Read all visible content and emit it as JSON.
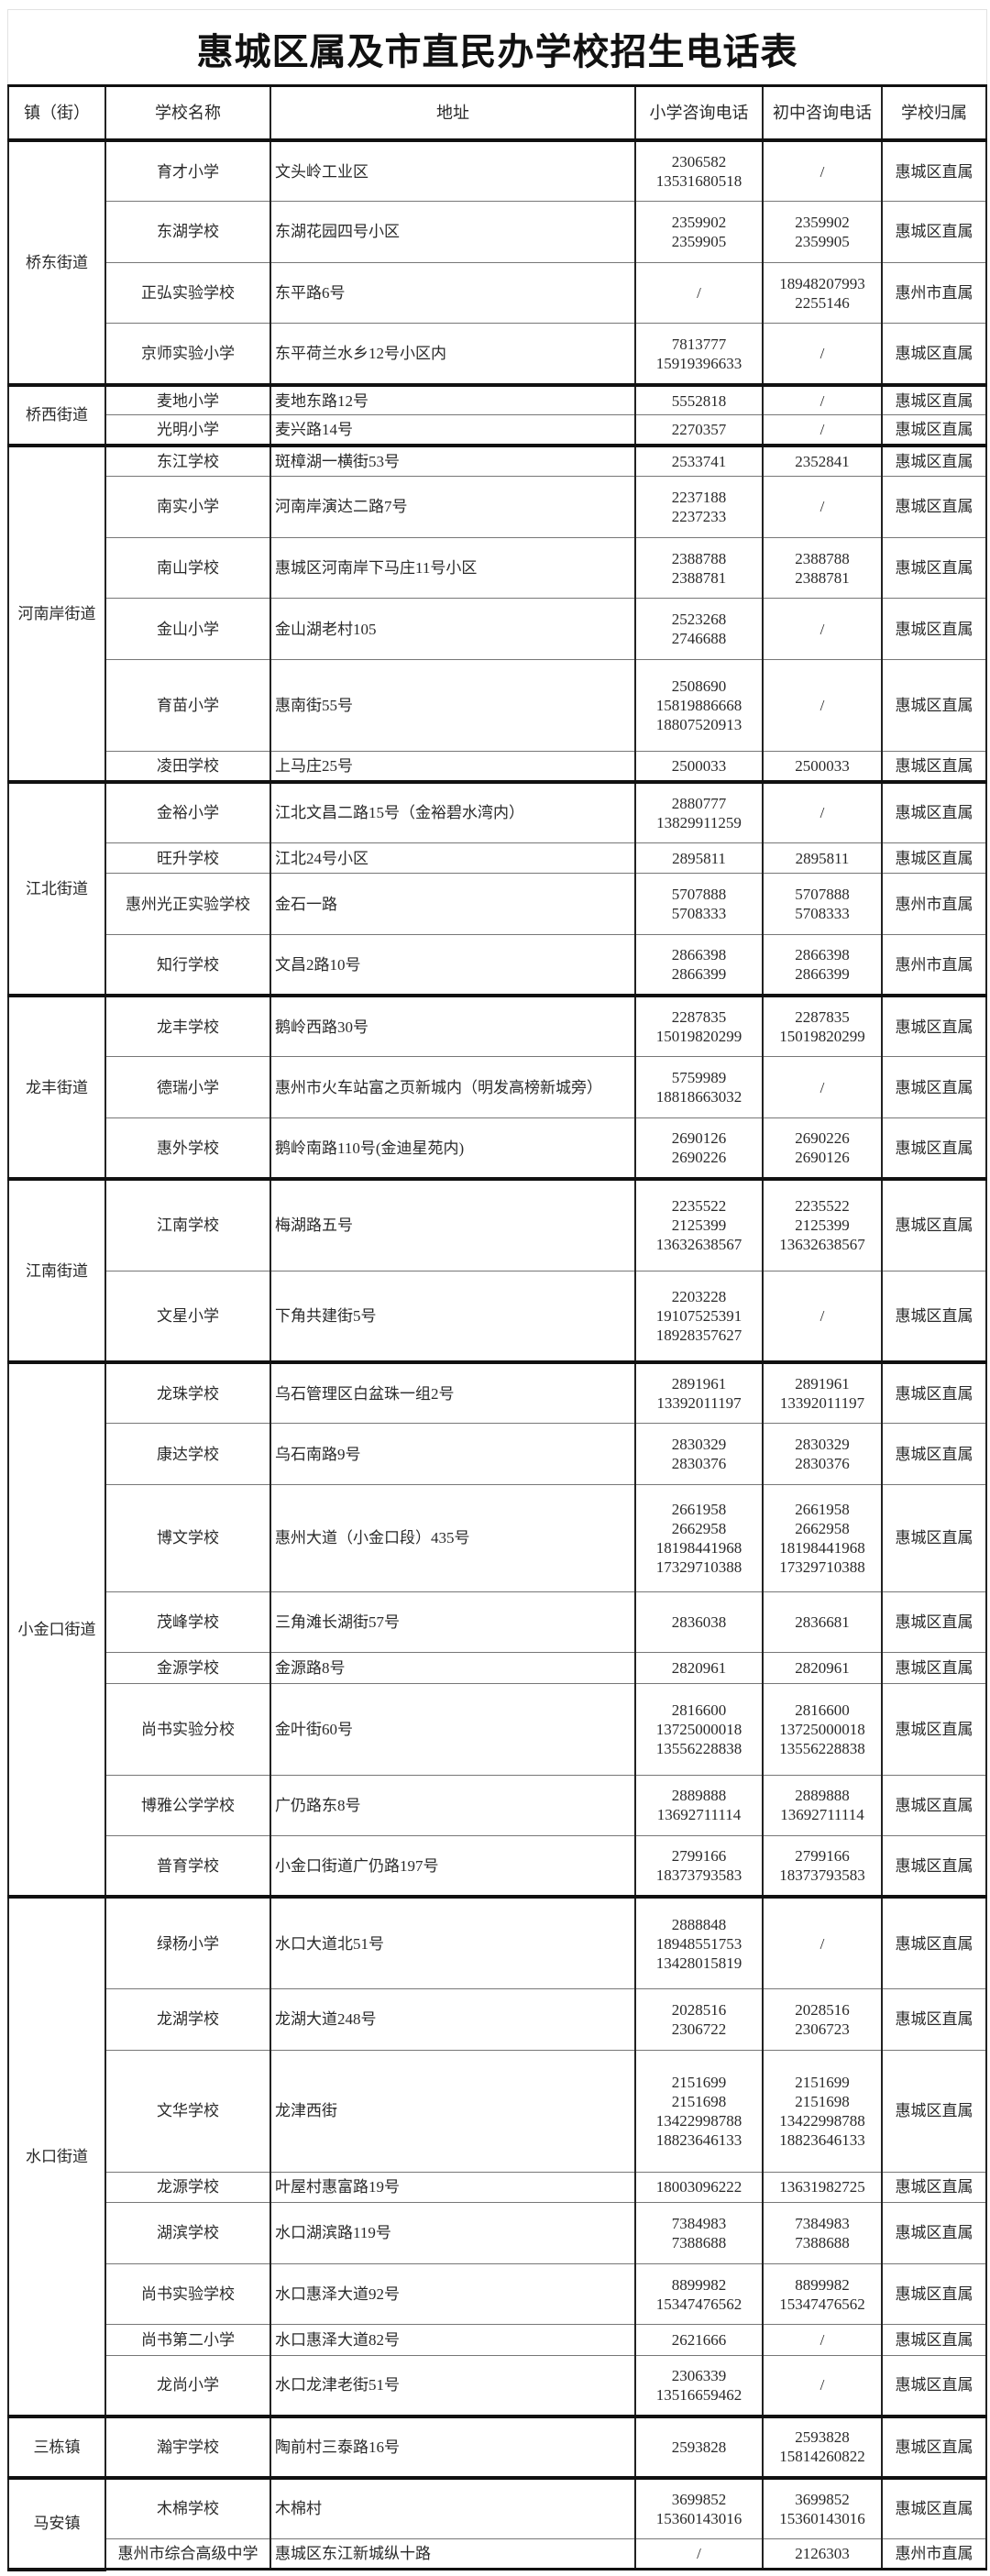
{
  "title": "惠城区属及市直民办学校招生电话表",
  "headers": [
    "镇（街）",
    "学校名称",
    "地址",
    "小学咨询电话",
    "初中咨询电话",
    "学校归属"
  ],
  "groups": [
    {
      "town": "桥东街道",
      "schools": [
        {
          "name": "育才小学",
          "address": "文头岭工业区",
          "primary_phone": [
            "2306582",
            "13531680518"
          ],
          "middle_phone": [
            "/"
          ],
          "affiliation": "惠城区直属"
        },
        {
          "name": "东湖学校",
          "address": "东湖花园四号小区",
          "primary_phone": [
            "2359902",
            "2359905"
          ],
          "middle_phone": [
            "2359902",
            "2359905"
          ],
          "affiliation": "惠城区直属"
        },
        {
          "name": "正弘实验学校",
          "address": "东平路6号",
          "primary_phone": [
            "/"
          ],
          "middle_phone": [
            "18948207993",
            "2255146"
          ],
          "affiliation": "惠州市直属"
        },
        {
          "name": "京师实验小学",
          "address": "东平荷兰水乡12号小区内",
          "primary_phone": [
            "7813777",
            "15919396633"
          ],
          "middle_phone": [
            "/"
          ],
          "affiliation": "惠城区直属"
        }
      ]
    },
    {
      "town": "桥西街道",
      "schools": [
        {
          "name": "麦地小学",
          "address": "麦地东路12号",
          "primary_phone": [
            "5552818"
          ],
          "middle_phone": [
            "/"
          ],
          "affiliation": "惠城区直属"
        },
        {
          "name": "光明小学",
          "address": "麦兴路14号",
          "primary_phone": [
            "2270357"
          ],
          "middle_phone": [
            "/"
          ],
          "affiliation": "惠城区直属"
        }
      ]
    },
    {
      "town": "河南岸街道",
      "schools": [
        {
          "name": "东江学校",
          "address": "斑樟湖一横街53号",
          "primary_phone": [
            "2533741"
          ],
          "middle_phone": [
            "2352841"
          ],
          "affiliation": "惠城区直属"
        },
        {
          "name": "南实小学",
          "address": "河南岸演达二路7号",
          "primary_phone": [
            "2237188",
            "2237233"
          ],
          "middle_phone": [
            "/"
          ],
          "affiliation": "惠城区直属"
        },
        {
          "name": "南山学校",
          "address": "惠城区河南岸下马庄11号小区",
          "primary_phone": [
            "2388788",
            "2388781"
          ],
          "middle_phone": [
            "2388788",
            "2388781"
          ],
          "affiliation": "惠城区直属"
        },
        {
          "name": "金山小学",
          "address": "金山湖老村105",
          "primary_phone": [
            "2523268",
            "2746688"
          ],
          "middle_phone": [
            "/"
          ],
          "affiliation": "惠城区直属"
        },
        {
          "name": "育苗小学",
          "address": "惠南街55号",
          "primary_phone": [
            "2508690",
            "15819886668",
            "18807520913"
          ],
          "middle_phone": [
            "/"
          ],
          "affiliation": "惠城区直属"
        },
        {
          "name": "凌田学校",
          "address": "上马庄25号",
          "primary_phone": [
            "2500033"
          ],
          "middle_phone": [
            "2500033"
          ],
          "affiliation": "惠城区直属"
        }
      ]
    },
    {
      "town": "江北街道",
      "schools": [
        {
          "name": "金裕小学",
          "address": "江北文昌二路15号（金裕碧水湾内）",
          "primary_phone": [
            "2880777",
            "13829911259"
          ],
          "middle_phone": [
            "/"
          ],
          "affiliation": "惠城区直属"
        },
        {
          "name": "旺升学校",
          "address": "江北24号小区",
          "primary_phone": [
            "2895811"
          ],
          "middle_phone": [
            "2895811"
          ],
          "affiliation": "惠城区直属"
        },
        {
          "name": "惠州光正实验学校",
          "address": "金石一路",
          "primary_phone": [
            "5707888",
            "5708333"
          ],
          "middle_phone": [
            "5707888",
            "5708333"
          ],
          "affiliation": "惠州市直属"
        },
        {
          "name": "知行学校",
          "address": "文昌2路10号",
          "primary_phone": [
            "2866398",
            "2866399"
          ],
          "middle_phone": [
            "2866398",
            "2866399"
          ],
          "affiliation": "惠州市直属"
        }
      ]
    },
    {
      "town": "龙丰街道",
      "schools": [
        {
          "name": "龙丰学校",
          "address": "鹅岭西路30号",
          "primary_phone": [
            "2287835",
            "15019820299"
          ],
          "middle_phone": [
            "2287835",
            "15019820299"
          ],
          "affiliation": "惠城区直属"
        },
        {
          "name": "德瑞小学",
          "address": "惠州市火车站富之页新城内（明发高榜新城旁）",
          "primary_phone": [
            "5759989",
            "18818663032"
          ],
          "middle_phone": [
            "/"
          ],
          "affiliation": "惠城区直属"
        },
        {
          "name": "惠外学校",
          "address": "鹅岭南路110号(金迪星苑内)",
          "primary_phone": [
            "2690126",
            "2690226"
          ],
          "middle_phone": [
            "2690226",
            "2690126"
          ],
          "affiliation": "惠城区直属"
        }
      ]
    },
    {
      "town": "江南街道",
      "schools": [
        {
          "name": "江南学校",
          "address": "梅湖路五号",
          "primary_phone": [
            "2235522",
            "2125399",
            "13632638567"
          ],
          "middle_phone": [
            "2235522",
            "2125399",
            "13632638567"
          ],
          "affiliation": "惠城区直属"
        },
        {
          "name": "文星小学",
          "address": "下角共建街5号",
          "primary_phone": [
            "2203228",
            "19107525391",
            "18928357627"
          ],
          "middle_phone": [
            "/"
          ],
          "affiliation": "惠城区直属"
        }
      ]
    },
    {
      "town": "小金口街道",
      "schools": [
        {
          "name": "龙珠学校",
          "address": "乌石管理区白盆珠一组2号",
          "primary_phone": [
            "2891961",
            "13392011197"
          ],
          "middle_phone": [
            "2891961",
            "13392011197"
          ],
          "affiliation": "惠城区直属"
        },
        {
          "name": "康达学校",
          "address": "乌石南路9号",
          "primary_phone": [
            "2830329",
            "2830376"
          ],
          "middle_phone": [
            "2830329",
            "2830376"
          ],
          "affiliation": "惠城区直属"
        },
        {
          "name": "博文学校",
          "address": "惠州大道（小金口段）435号",
          "primary_phone": [
            "2661958",
            "2662958",
            "18198441968",
            "17329710388"
          ],
          "middle_phone": [
            "2661958",
            "2662958",
            "18198441968",
            "17329710388"
          ],
          "affiliation": "惠城区直属"
        },
        {
          "name": "茂峰学校",
          "address": "三角滩长湖街57号",
          "primary_phone": [
            "2836038"
          ],
          "middle_phone": [
            "2836681"
          ],
          "affiliation": "惠城区直属"
        },
        {
          "name": "金源学校",
          "address": "金源路8号",
          "primary_phone": [
            "2820961"
          ],
          "middle_phone": [
            "2820961"
          ],
          "affiliation": "惠城区直属"
        },
        {
          "name": "尚书实验分校",
          "address": "金叶街60号",
          "primary_phone": [
            "2816600",
            "13725000018",
            "13556228838"
          ],
          "middle_phone": [
            "2816600",
            "13725000018",
            "13556228838"
          ],
          "affiliation": "惠城区直属"
        },
        {
          "name": "博雅公学学校",
          "address": "广仍路东8号",
          "primary_phone": [
            "2889888",
            "13692711114"
          ],
          "middle_phone": [
            "2889888",
            "13692711114"
          ],
          "affiliation": "惠城区直属"
        },
        {
          "name": "普育学校",
          "address": "小金口街道广仍路197号",
          "primary_phone": [
            "2799166",
            "18373793583"
          ],
          "middle_phone": [
            "2799166",
            "18373793583"
          ],
          "affiliation": "惠城区直属"
        }
      ]
    },
    {
      "town": "水口街道",
      "schools": [
        {
          "name": "绿杨小学",
          "address": "水口大道北51号",
          "primary_phone": [
            "2888848",
            "18948551753",
            "13428015819"
          ],
          "middle_phone": [
            "/"
          ],
          "affiliation": "惠城区直属"
        },
        {
          "name": "龙湖学校",
          "address": "龙湖大道248号",
          "primary_phone": [
            "2028516",
            "2306722"
          ],
          "middle_phone": [
            "2028516",
            "2306723"
          ],
          "affiliation": "惠城区直属"
        },
        {
          "name": "文华学校",
          "address": "龙津西街",
          "primary_phone": [
            "2151699",
            "2151698",
            "13422998788",
            "18823646133"
          ],
          "middle_phone": [
            "2151699",
            "2151698",
            "13422998788",
            "18823646133"
          ],
          "affiliation": "惠城区直属"
        },
        {
          "name": "龙源学校",
          "address": "叶屋村惠富路19号",
          "primary_phone": [
            "18003096222"
          ],
          "middle_phone": [
            "13631982725"
          ],
          "affiliation": "惠城区直属"
        },
        {
          "name": "湖滨学校",
          "address": "水口湖滨路119号",
          "primary_phone": [
            "7384983",
            "7388688"
          ],
          "middle_phone": [
            "7384983",
            "7388688"
          ],
          "affiliation": "惠城区直属"
        },
        {
          "name": "尚书实验学校",
          "address": "水口惠泽大道92号",
          "primary_phone": [
            "8899982",
            "15347476562"
          ],
          "middle_phone": [
            "8899982",
            "15347476562"
          ],
          "affiliation": "惠城区直属"
        },
        {
          "name": "尚书第二小学",
          "address": "水口惠泽大道82号",
          "primary_phone": [
            "2621666"
          ],
          "middle_phone": [
            "/"
          ],
          "affiliation": "惠城区直属"
        },
        {
          "name": "龙尚小学",
          "address": "水口龙津老街51号",
          "primary_phone": [
            "2306339",
            "13516659462"
          ],
          "middle_phone": [
            "/"
          ],
          "affiliation": "惠城区直属"
        }
      ]
    },
    {
      "town": "三栋镇",
      "schools": [
        {
          "name": "瀚宇学校",
          "address": "陶前村三泰路16号",
          "primary_phone": [
            "2593828"
          ],
          "middle_phone": [
            "2593828",
            "15814260822"
          ],
          "affiliation": "惠城区直属"
        }
      ]
    },
    {
      "town": "马安镇",
      "schools": [
        {
          "name": "木棉学校",
          "address": "木棉村",
          "primary_phone": [
            "3699852",
            "15360143016"
          ],
          "middle_phone": [
            "3699852",
            "15360143016"
          ],
          "affiliation": "惠城区直属"
        },
        {
          "name": "惠州市综合高级中学",
          "address": "惠城区东江新城纵十路",
          "primary_phone": [
            "/"
          ],
          "middle_phone": [
            "2126303"
          ],
          "affiliation": "惠州市直属"
        }
      ]
    }
  ]
}
